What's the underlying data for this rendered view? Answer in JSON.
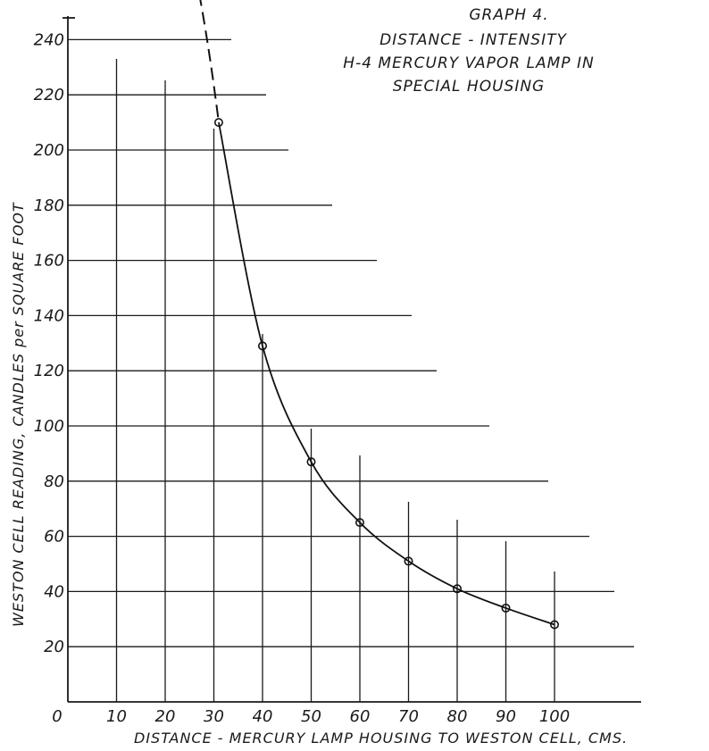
{
  "chart_data": {
    "type": "line",
    "title_lines": [
      "GRAPH 4.",
      "DISTANCE - INTENSITY",
      "H-4 MERCURY VAPOR LAMP IN",
      "SPECIAL HOUSING"
    ],
    "xlabel": "DISTANCE - MERCURY LAMP HOUSING TO WESTON CELL, CMS.",
    "ylabel": "WESTON CELL READING,  CANDLES per SQUARE FOOT",
    "x_ticks": [
      0,
      10,
      20,
      30,
      40,
      50,
      60,
      70,
      80,
      90,
      100
    ],
    "y_ticks": [
      20,
      40,
      60,
      80,
      100,
      120,
      140,
      160,
      180,
      200,
      220,
      240
    ],
    "xlim": [
      0,
      118
    ],
    "ylim": [
      0,
      260
    ],
    "grid": true,
    "series": [
      {
        "x": [
          31,
          40,
          50,
          60,
          70,
          80,
          90,
          100
        ],
        "y": [
          210,
          129,
          87,
          65,
          51,
          41,
          34,
          28
        ]
      }
    ],
    "extrapolation": {
      "style": "dashed",
      "x": [
        25.5,
        31
      ],
      "y": [
        270,
        210
      ]
    }
  }
}
